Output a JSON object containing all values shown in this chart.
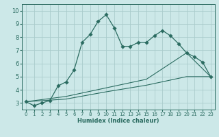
{
  "xlabel": "Humidex (Indice chaleur)",
  "xlim": [
    -0.5,
    23.5
  ],
  "ylim": [
    2.5,
    10.5
  ],
  "xticks": [
    0,
    1,
    2,
    3,
    4,
    5,
    6,
    7,
    8,
    9,
    10,
    11,
    12,
    13,
    14,
    15,
    16,
    17,
    18,
    19,
    20,
    21,
    22,
    23
  ],
  "yticks": [
    3,
    4,
    5,
    6,
    7,
    8,
    9,
    10
  ],
  "background_color": "#cce8e8",
  "grid_color": "#aacccc",
  "line_color": "#2a6b60",
  "series_main": {
    "x": [
      0,
      1,
      2,
      3,
      4,
      5,
      6,
      7,
      8,
      9,
      10,
      11,
      12,
      13,
      14,
      15,
      16,
      17,
      18,
      19,
      20,
      21,
      22,
      23
    ],
    "y": [
      3.1,
      2.8,
      3.0,
      3.2,
      4.3,
      4.6,
      5.5,
      7.6,
      8.2,
      9.2,
      9.7,
      8.7,
      7.3,
      7.3,
      7.6,
      7.6,
      8.1,
      8.5,
      8.1,
      7.5,
      6.8,
      6.5,
      6.1,
      5.0
    ]
  },
  "series_mid": {
    "x": [
      0,
      5,
      10,
      15,
      20,
      23
    ],
    "y": [
      3.1,
      3.5,
      4.15,
      4.8,
      6.8,
      5.0
    ]
  },
  "series_low": {
    "x": [
      0,
      5,
      10,
      15,
      20,
      23
    ],
    "y": [
      3.1,
      3.3,
      3.85,
      4.35,
      5.0,
      5.0
    ]
  }
}
